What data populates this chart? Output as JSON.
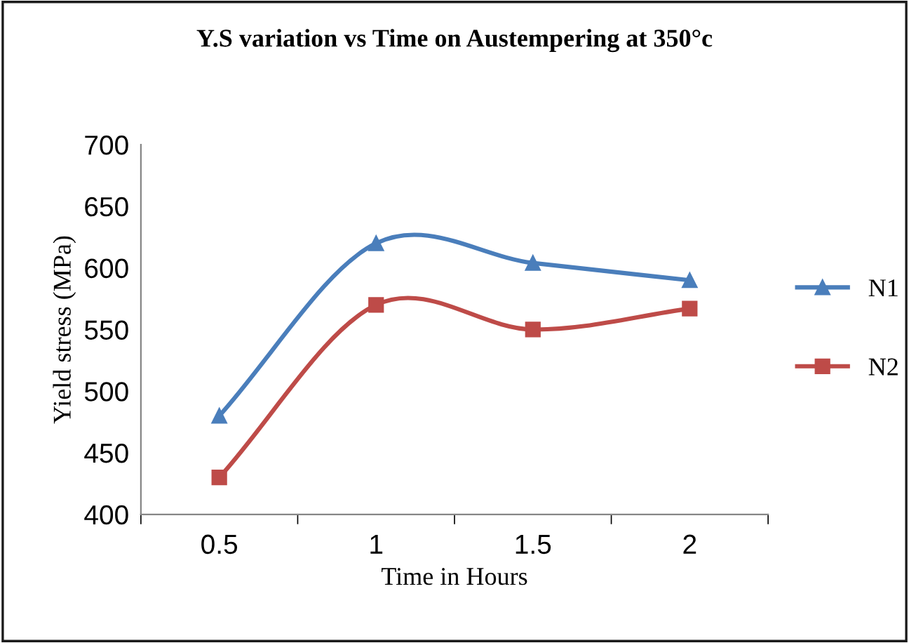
{
  "chart_data": {
    "type": "line",
    "title": "Y.S variation vs Time on Austempering at 350°c",
    "xlabel": "Time in Hours",
    "ylabel": "Yield stress (MPa)",
    "categories": [
      "0.5",
      "1",
      "1.5",
      "2"
    ],
    "series": [
      {
        "name": "N1",
        "color": "#4a7ebb",
        "values": [
          480,
          620,
          604,
          590
        ],
        "marker": "triangle"
      },
      {
        "name": "N2",
        "color": "#be4b48",
        "values": [
          430,
          570,
          550,
          567
        ],
        "marker": "square"
      }
    ],
    "ylim": [
      400,
      700
    ],
    "yticks": [
      400,
      450,
      500,
      550,
      600,
      650,
      700
    ],
    "grid": false,
    "legend": "right"
  }
}
